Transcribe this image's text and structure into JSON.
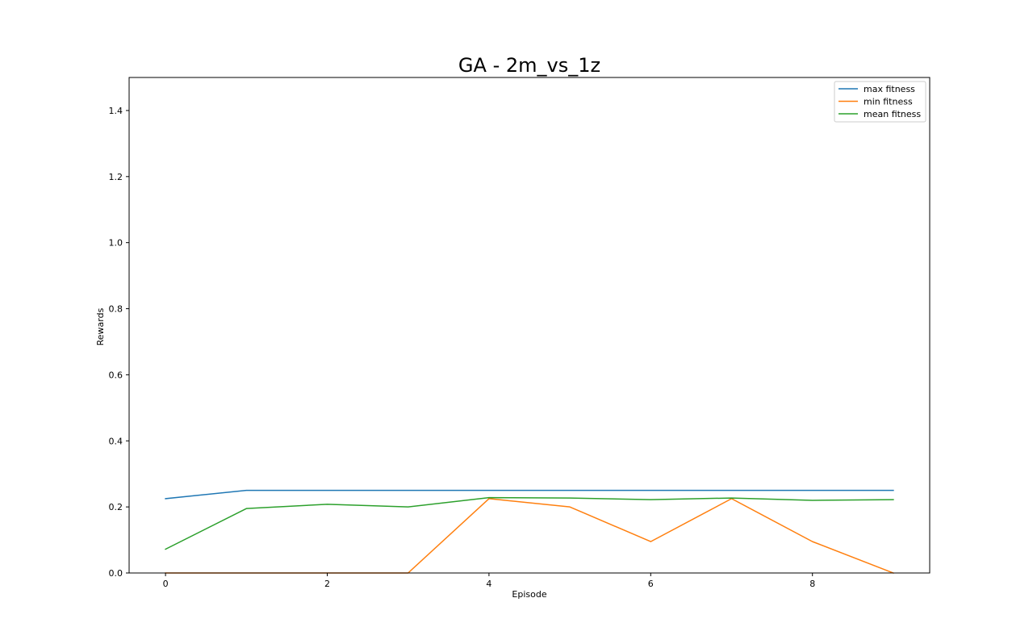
{
  "chart_data": {
    "type": "line",
    "title": "GA - 2m_vs_1z",
    "xlabel": "Episode",
    "ylabel": "Rewards",
    "x": [
      0,
      1,
      2,
      3,
      4,
      5,
      6,
      7,
      8,
      9
    ],
    "xlim": [
      -0.45,
      9.45
    ],
    "ylim": [
      0,
      1.5
    ],
    "xticks": [
      0,
      2,
      4,
      6,
      8
    ],
    "xtick_labels": [
      "0",
      "2",
      "4",
      "6",
      "8"
    ],
    "yticks": [
      0.0,
      0.2,
      0.4,
      0.6,
      0.8,
      1.0,
      1.2,
      1.4
    ],
    "ytick_labels": [
      "0.0",
      "0.2",
      "0.4",
      "0.6",
      "0.8",
      "1.0",
      "1.2",
      "1.4"
    ],
    "grid": false,
    "legend_position": "top-right",
    "series": [
      {
        "name": "max fitness",
        "color": "#1f77b4",
        "values": [
          0.225,
          0.25,
          0.25,
          0.25,
          0.25,
          0.25,
          0.25,
          0.25,
          0.25,
          0.25
        ]
      },
      {
        "name": "min fitness",
        "color": "#ff7f0e",
        "values": [
          0.0,
          0.0,
          0.0,
          0.0,
          0.225,
          0.2,
          0.095,
          0.225,
          0.095,
          0.0
        ]
      },
      {
        "name": "mean fitness",
        "color": "#2ca02c",
        "values": [
          0.072,
          0.195,
          0.208,
          0.2,
          0.228,
          0.227,
          0.222,
          0.227,
          0.22,
          0.222
        ]
      }
    ]
  }
}
